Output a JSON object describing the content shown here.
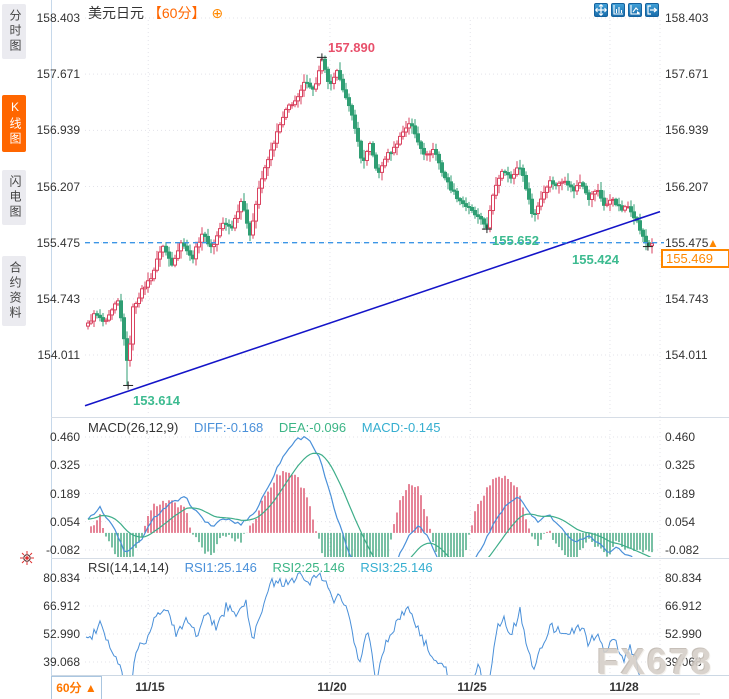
{
  "header": {
    "title": "美元日元",
    "period": "【60分】",
    "add_icon": "⊕"
  },
  "sidebar": {
    "tabs": [
      {
        "label": "分时图",
        "active": false
      },
      {
        "label": "K线图",
        "active": true
      },
      {
        "label": "闪电图",
        "active": false
      },
      {
        "label": "合约资料",
        "active": false
      }
    ]
  },
  "toolbar": {
    "icons": [
      "pan-icon",
      "axis-scale-icon",
      "pointer-chart-icon",
      "exit-chart-icon"
    ]
  },
  "price_pane": {
    "axis_labels": [
      "158.403",
      "157.671",
      "156.939",
      "156.207",
      "155.475",
      "154.743",
      "154.011"
    ],
    "annotations": {
      "peak": "157.890",
      "pullback_low": "155.652",
      "latest_low": "155.424",
      "swing_low": "153.614"
    },
    "current_price": "155.469",
    "arrow_up": "▲"
  },
  "macd_pane": {
    "title": "MACD(26,12,9)",
    "diff": "DIFF:-0.168",
    "dea": "DEA:-0.096",
    "macd": "MACD:-0.145",
    "axis_labels": [
      "0.460",
      "0.325",
      "0.189",
      "0.054",
      "-0.082"
    ]
  },
  "rsi_pane": {
    "title": "RSI(14,14,14)",
    "rsi1": "RSI1:25.146",
    "rsi2": "RSI2:25.146",
    "rsi3": "RSI3:25.146",
    "axis_labels": [
      "80.834",
      "66.912",
      "52.990",
      "39.068"
    ]
  },
  "time_axis": {
    "dates": [
      "11/15",
      "11/20",
      "11/25",
      "11/28"
    ],
    "period": "60分",
    "arrow": "▲"
  },
  "watermark": "FX678",
  "colors": {
    "up_candle": "#d9425f",
    "down_candle": "#2f9e73",
    "accent_orange": "#ff6f00",
    "trendline": "#1414c8",
    "dashed_level": "#3c96e6",
    "diff_line": "#4a90d9",
    "dea_line": "#3fae8a",
    "rsi_line": "#4a90d9",
    "grid": "#e3e3ea",
    "annotation_green": "#3dbb90",
    "annotation_red": "#e8506b"
  },
  "chart_data": [
    {
      "type": "candlestick",
      "title": "美元日元 60分",
      "x_axis_dates": [
        "11/15",
        "11/20",
        "11/25",
        "11/28"
      ],
      "x_date_positions": [
        0.11,
        0.426,
        0.67,
        0.913
      ],
      "y_axis_values": [
        158.403,
        157.671,
        156.939,
        156.207,
        155.475,
        154.743,
        154.011
      ],
      "current_price": 155.469,
      "horizontal_level": 155.475,
      "trendline": {
        "t1": 0.0,
        "p1": 153.35,
        "t2": 1.0,
        "p2": 155.88
      },
      "markers": [
        {
          "t": 0.075,
          "price": 153.614,
          "type": "low"
        },
        {
          "t": 0.412,
          "price": 157.89,
          "type": "high"
        },
        {
          "t": 0.699,
          "price": 155.652,
          "type": "low"
        },
        {
          "t": 0.979,
          "price": 155.424,
          "type": "low"
        }
      ],
      "price_keypoints": [
        [
          0.0,
          154.35
        ],
        [
          0.017,
          154.55
        ],
        [
          0.035,
          154.42
        ],
        [
          0.057,
          154.72
        ],
        [
          0.066,
          154.35
        ],
        [
          0.075,
          153.8
        ],
        [
          0.082,
          154.6
        ],
        [
          0.099,
          154.85
        ],
        [
          0.117,
          155.05
        ],
        [
          0.134,
          155.45
        ],
        [
          0.151,
          155.2
        ],
        [
          0.169,
          155.5
        ],
        [
          0.186,
          155.25
        ],
        [
          0.203,
          155.6
        ],
        [
          0.221,
          155.4
        ],
        [
          0.238,
          155.72
        ],
        [
          0.256,
          155.68
        ],
        [
          0.273,
          156.05
        ],
        [
          0.287,
          155.55
        ],
        [
          0.301,
          156.15
        ],
        [
          0.318,
          156.55
        ],
        [
          0.336,
          156.95
        ],
        [
          0.353,
          157.25
        ],
        [
          0.37,
          157.35
        ],
        [
          0.384,
          157.6
        ],
        [
          0.398,
          157.45
        ],
        [
          0.412,
          157.85
        ],
        [
          0.426,
          157.5
        ],
        [
          0.44,
          157.72
        ],
        [
          0.454,
          157.35
        ],
        [
          0.468,
          157.05
        ],
        [
          0.482,
          156.5
        ],
        [
          0.496,
          156.75
        ],
        [
          0.51,
          156.35
        ],
        [
          0.523,
          156.6
        ],
        [
          0.537,
          156.7
        ],
        [
          0.551,
          156.9
        ],
        [
          0.565,
          157.05
        ],
        [
          0.579,
          156.8
        ],
        [
          0.593,
          156.6
        ],
        [
          0.607,
          156.7
        ],
        [
          0.621,
          156.4
        ],
        [
          0.635,
          156.2
        ],
        [
          0.649,
          156.05
        ],
        [
          0.663,
          155.95
        ],
        [
          0.677,
          155.85
        ],
        [
          0.69,
          155.75
        ],
        [
          0.699,
          155.68
        ],
        [
          0.713,
          156.2
        ],
        [
          0.727,
          156.45
        ],
        [
          0.741,
          156.3
        ],
        [
          0.755,
          156.5
        ],
        [
          0.769,
          156.15
        ],
        [
          0.779,
          155.8
        ],
        [
          0.793,
          156.05
        ],
        [
          0.807,
          156.28
        ],
        [
          0.821,
          156.22
        ],
        [
          0.835,
          156.3
        ],
        [
          0.849,
          156.15
        ],
        [
          0.863,
          156.28
        ],
        [
          0.877,
          156.05
        ],
        [
          0.89,
          156.18
        ],
        [
          0.904,
          155.95
        ],
        [
          0.918,
          156.05
        ],
        [
          0.932,
          155.9
        ],
        [
          0.946,
          155.95
        ],
        [
          0.96,
          155.75
        ],
        [
          0.97,
          155.55
        ],
        [
          0.979,
          155.43
        ],
        [
          0.986,
          155.47
        ]
      ]
    },
    {
      "type": "bar",
      "name": "MACD",
      "params": "26,12,9",
      "diff": -0.168,
      "dea": -0.096,
      "macd": -0.145,
      "y_ticks": [
        0.46,
        0.325,
        0.189,
        0.054,
        -0.082
      ],
      "diff_keypoints": [
        [
          0.0,
          0.06
        ],
        [
          0.026,
          0.12
        ],
        [
          0.047,
          0.04
        ],
        [
          0.071,
          -0.1
        ],
        [
          0.096,
          -0.04
        ],
        [
          0.122,
          0.08
        ],
        [
          0.148,
          0.14
        ],
        [
          0.174,
          0.17
        ],
        [
          0.2,
          0.08
        ],
        [
          0.221,
          0.03
        ],
        [
          0.243,
          0.07
        ],
        [
          0.27,
          0.04
        ],
        [
          0.296,
          0.1
        ],
        [
          0.318,
          0.22
        ],
        [
          0.343,
          0.36
        ],
        [
          0.367,
          0.45
        ],
        [
          0.388,
          0.46
        ],
        [
          0.409,
          0.35
        ],
        [
          0.433,
          0.12
        ],
        [
          0.457,
          -0.08
        ],
        [
          0.482,
          -0.22
        ],
        [
          0.506,
          -0.31
        ],
        [
          0.527,
          -0.25
        ],
        [
          0.544,
          -0.12
        ],
        [
          0.562,
          -0.02
        ],
        [
          0.579,
          0.04
        ],
        [
          0.597,
          -0.02
        ],
        [
          0.614,
          -0.12
        ],
        [
          0.631,
          -0.22
        ],
        [
          0.649,
          -0.27
        ],
        [
          0.666,
          -0.21
        ],
        [
          0.683,
          -0.1
        ],
        [
          0.701,
          -0.01
        ],
        [
          0.718,
          0.08
        ],
        [
          0.736,
          0.14
        ],
        [
          0.753,
          0.17
        ],
        [
          0.77,
          0.11
        ],
        [
          0.788,
          0.05
        ],
        [
          0.805,
          0.09
        ],
        [
          0.822,
          0.04
        ],
        [
          0.84,
          -0.02
        ],
        [
          0.857,
          -0.04
        ],
        [
          0.875,
          -0.01
        ],
        [
          0.892,
          -0.05
        ],
        [
          0.91,
          -0.09
        ],
        [
          0.927,
          -0.07
        ],
        [
          0.944,
          -0.11
        ],
        [
          0.962,
          -0.13
        ],
        [
          0.979,
          -0.15
        ],
        [
          0.986,
          -0.168
        ]
      ]
    },
    {
      "type": "line",
      "name": "RSI",
      "params": "14,14,14",
      "rsi1": 25.146,
      "rsi2": 25.146,
      "rsi3": 25.146,
      "y_ticks": [
        80.834,
        66.912,
        52.99,
        39.068
      ],
      "rsi_keypoints": [
        [
          0.0,
          50
        ],
        [
          0.026,
          56
        ],
        [
          0.047,
          47
        ],
        [
          0.064,
          32
        ],
        [
          0.075,
          17
        ],
        [
          0.089,
          44
        ],
        [
          0.106,
          52
        ],
        [
          0.123,
          61
        ],
        [
          0.141,
          68
        ],
        [
          0.158,
          52
        ],
        [
          0.176,
          63
        ],
        [
          0.193,
          50
        ],
        [
          0.21,
          64
        ],
        [
          0.228,
          55
        ],
        [
          0.245,
          68
        ],
        [
          0.263,
          61
        ],
        [
          0.28,
          72
        ],
        [
          0.29,
          47
        ],
        [
          0.304,
          64
        ],
        [
          0.322,
          76
        ],
        [
          0.339,
          81
        ],
        [
          0.357,
          77
        ],
        [
          0.374,
          84
        ],
        [
          0.391,
          78
        ],
        [
          0.412,
          83
        ],
        [
          0.43,
          68
        ],
        [
          0.443,
          75
        ],
        [
          0.461,
          60
        ],
        [
          0.478,
          38
        ],
        [
          0.492,
          52
        ],
        [
          0.506,
          31
        ],
        [
          0.52,
          45
        ],
        [
          0.534,
          56
        ],
        [
          0.551,
          62
        ],
        [
          0.569,
          66
        ],
        [
          0.583,
          51
        ],
        [
          0.6,
          44
        ],
        [
          0.617,
          38
        ],
        [
          0.635,
          31
        ],
        [
          0.652,
          27
        ],
        [
          0.67,
          25
        ],
        [
          0.683,
          36
        ],
        [
          0.699,
          24
        ],
        [
          0.715,
          53
        ],
        [
          0.729,
          61
        ],
        [
          0.743,
          54
        ],
        [
          0.757,
          63
        ],
        [
          0.77,
          46
        ],
        [
          0.781,
          34
        ],
        [
          0.795,
          46
        ],
        [
          0.809,
          57
        ],
        [
          0.822,
          53
        ],
        [
          0.837,
          57
        ],
        [
          0.85,
          52
        ],
        [
          0.864,
          57
        ],
        [
          0.878,
          48
        ],
        [
          0.892,
          53
        ],
        [
          0.906,
          44
        ],
        [
          0.92,
          50
        ],
        [
          0.934,
          42
        ],
        [
          0.948,
          46
        ],
        [
          0.962,
          36
        ],
        [
          0.972,
          24
        ],
        [
          0.986,
          25.1
        ]
      ]
    }
  ]
}
